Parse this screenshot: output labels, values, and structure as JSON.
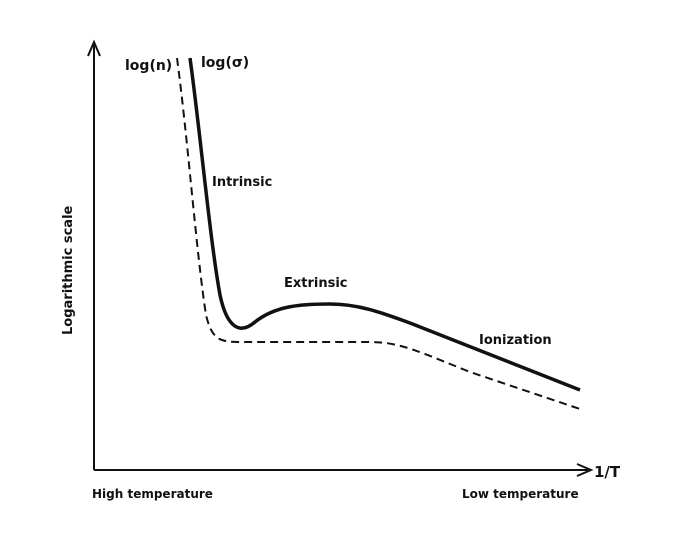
{
  "colors": {
    "ink": "#111111",
    "background": "#ffffff"
  },
  "axes": {
    "y_label": "Logarithmic scale",
    "x_label": "1/T",
    "x_left_end": "High temperature",
    "x_right_end": "Low temperature"
  },
  "curves": {
    "carrier_concentration": {
      "label": "log(n)",
      "style": "dashed"
    },
    "conductivity": {
      "label": "log(σ)",
      "style": "solid"
    }
  },
  "regions": {
    "intrinsic": "Intrinsic",
    "extrinsic": "Extrinsic",
    "ionization": "Ionization"
  }
}
